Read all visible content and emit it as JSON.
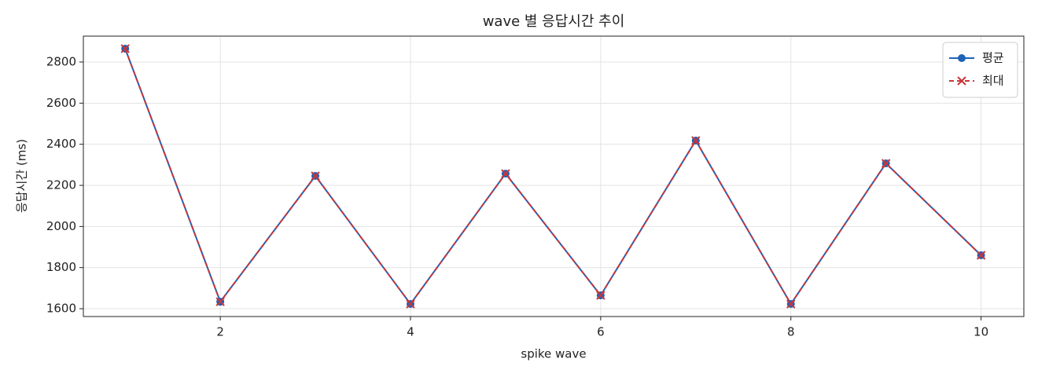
{
  "chart_data": {
    "type": "line",
    "title": "wave 별 응답시간 추이",
    "xlabel": "spike wave",
    "ylabel": "응답시간 (ms)",
    "x": [
      1,
      2,
      3,
      4,
      5,
      6,
      7,
      8,
      9,
      10
    ],
    "series": [
      {
        "name": "평균",
        "color": "#1f62b8",
        "marker": "o",
        "linestyle": "solid",
        "values": [
          2865,
          1634,
          2246,
          1623,
          2257,
          1665,
          2418,
          1623,
          2307,
          1860
        ]
      },
      {
        "name": "최대",
        "color": "#c8363a",
        "marker": "x",
        "linestyle": "dashed",
        "values": [
          2865,
          1634,
          2246,
          1623,
          2257,
          1665,
          2418,
          1623,
          2307,
          1860
        ]
      }
    ],
    "xlim": [
      0.56,
      10.45
    ],
    "xticks": [
      2,
      4,
      6,
      8,
      10
    ],
    "ylim": [
      1562,
      2926
    ],
    "yticks": [
      1600,
      1800,
      2000,
      2200,
      2400,
      2600,
      2800
    ],
    "grid": true,
    "legend": "upper right"
  }
}
